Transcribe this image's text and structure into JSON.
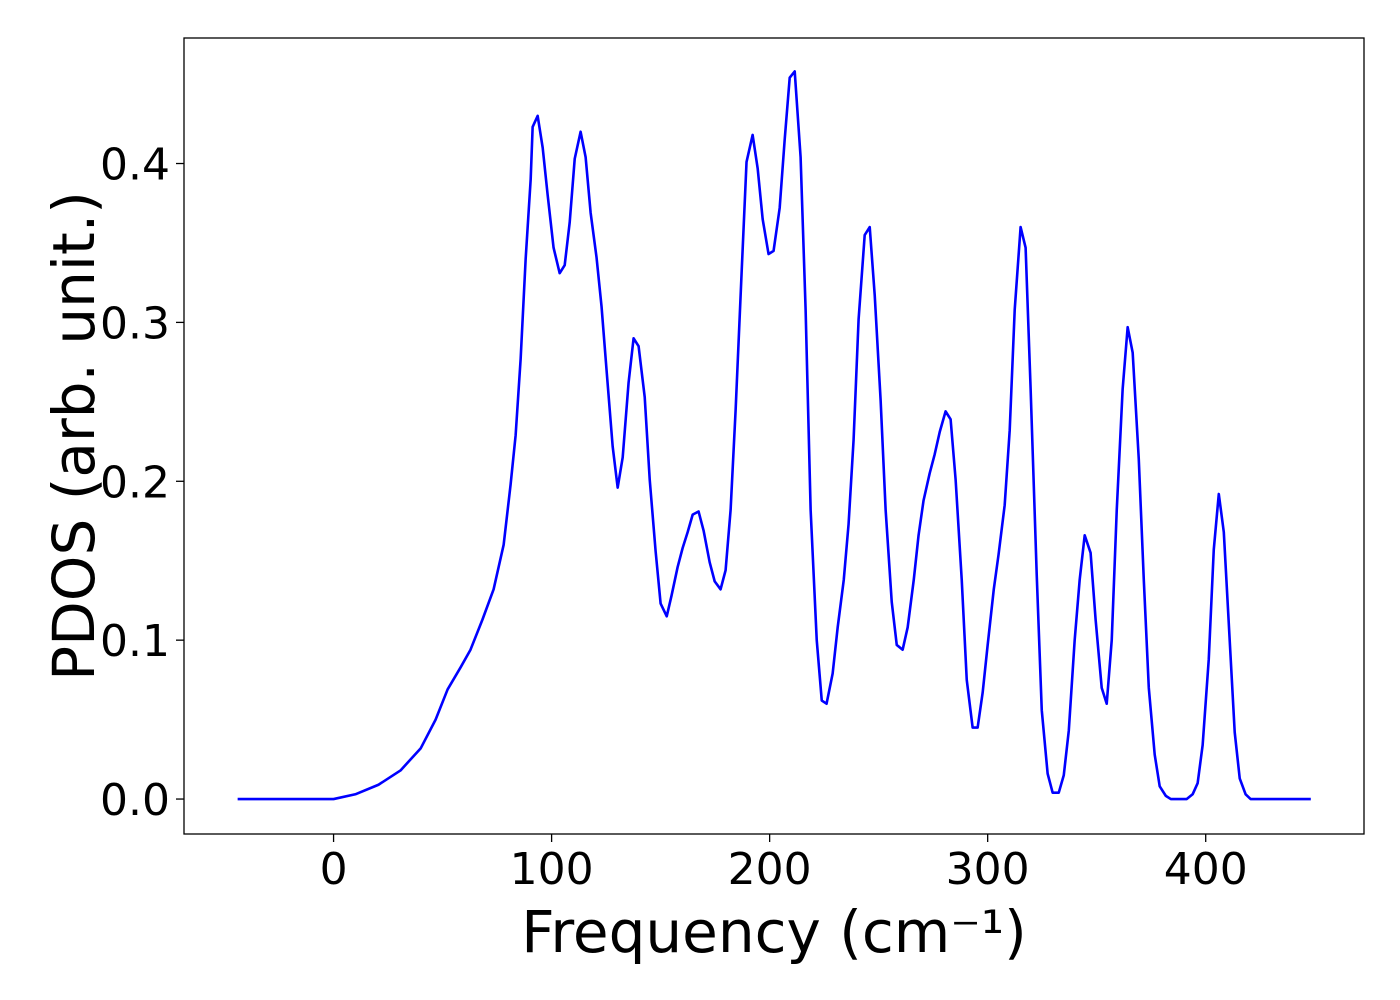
{
  "chart_data": {
    "type": "line",
    "xlabel": "Frequency (cm⁻¹)",
    "ylabel": "PDOS (arb. unit.)",
    "xlim": [
      -68.6,
      472.6
    ],
    "ylim": [
      -0.022,
      0.479
    ],
    "xticks": [
      0,
      100,
      200,
      300,
      400
    ],
    "yticks": [
      {
        "value": 0,
        "label": "0.0"
      },
      0.1,
      0.2,
      0.3,
      0.4
    ],
    "grid": false,
    "series": [
      {
        "color": "#0000ff",
        "x": [
          -44,
          0,
          10,
          20.6,
          30.7,
          40,
          46.8,
          52.3,
          58.3,
          62.8,
          68.3,
          73.4,
          78,
          81.2,
          83.5,
          85.8,
          88.1,
          90.4,
          91.3,
          93.6,
          95.9,
          98.2,
          100.9,
          103.7,
          106,
          108.3,
          110.6,
          113.3,
          115.6,
          117.9,
          120.6,
          122.9,
          125.2,
          128,
          130.3,
          132.6,
          135.3,
          137.6,
          139.9,
          142.7,
          145,
          147.7,
          150,
          152.8,
          155,
          157.8,
          160.1,
          162.4,
          164.7,
          167.4,
          169.7,
          172.5,
          174.8,
          177.5,
          179.8,
          182.1,
          184.4,
          187.2,
          189.4,
          192.2,
          194.5,
          196.8,
          199.5,
          201.8,
          204.6,
          206.9,
          209.2,
          211.5,
          214.2,
          216.5,
          218.8,
          221.6,
          223.9,
          226.1,
          228.9,
          231.2,
          234,
          236.2,
          238.5,
          240.8,
          243.6,
          245.9,
          248.2,
          250.9,
          253.2,
          256,
          258.3,
          261,
          263.3,
          266.1,
          268.3,
          270.6,
          273.4,
          275.7,
          278,
          280.7,
          283,
          285.3,
          288.1,
          290.4,
          293.1,
          295.4,
          297.7,
          300,
          302.8,
          305,
          307.8,
          310.1,
          312.4,
          315.1,
          317.4,
          319.7,
          322.5,
          324.8,
          327.5,
          329.8,
          332.6,
          334.9,
          337.2,
          339.9,
          342.2,
          344.5,
          347.2,
          349.5,
          352.3,
          354.6,
          356.9,
          359.2,
          361.9,
          364.2,
          366.5,
          369.3,
          371.6,
          373.9,
          376.6,
          378.9,
          381.7,
          384,
          391.3,
          394,
          396.3,
          398.6,
          401.4,
          403.7,
          406,
          408.3,
          411,
          413.3,
          415.6,
          418.3,
          420.6,
          448.2
        ],
        "values": [
          0,
          0,
          0.003,
          0.009,
          0.018,
          0.032,
          0.05,
          0.069,
          0.083,
          0.094,
          0.113,
          0.132,
          0.16,
          0.198,
          0.229,
          0.277,
          0.34,
          0.39,
          0.423,
          0.43,
          0.41,
          0.38,
          0.347,
          0.331,
          0.336,
          0.363,
          0.403,
          0.42,
          0.404,
          0.369,
          0.341,
          0.31,
          0.27,
          0.222,
          0.196,
          0.215,
          0.262,
          0.29,
          0.285,
          0.253,
          0.201,
          0.156,
          0.123,
          0.115,
          0.128,
          0.146,
          0.158,
          0.168,
          0.179,
          0.181,
          0.169,
          0.149,
          0.137,
          0.132,
          0.144,
          0.182,
          0.245,
          0.333,
          0.401,
          0.418,
          0.397,
          0.365,
          0.343,
          0.345,
          0.372,
          0.415,
          0.454,
          0.458,
          0.404,
          0.308,
          0.182,
          0.1,
          0.062,
          0.06,
          0.079,
          0.108,
          0.138,
          0.173,
          0.226,
          0.302,
          0.355,
          0.36,
          0.317,
          0.251,
          0.182,
          0.124,
          0.097,
          0.094,
          0.108,
          0.138,
          0.166,
          0.188,
          0.205,
          0.217,
          0.231,
          0.244,
          0.239,
          0.201,
          0.138,
          0.075,
          0.045,
          0.045,
          0.067,
          0.097,
          0.132,
          0.154,
          0.185,
          0.232,
          0.308,
          0.36,
          0.347,
          0.258,
          0.141,
          0.056,
          0.016,
          0.004,
          0.004,
          0.015,
          0.043,
          0.1,
          0.138,
          0.166,
          0.155,
          0.113,
          0.07,
          0.06,
          0.1,
          0.182,
          0.258,
          0.297,
          0.281,
          0.214,
          0.138,
          0.07,
          0.028,
          0.008,
          0.002,
          0,
          0,
          0.003,
          0.01,
          0.034,
          0.088,
          0.157,
          0.192,
          0.168,
          0.1,
          0.042,
          0.013,
          0.003,
          0,
          0
        ]
      }
    ]
  }
}
